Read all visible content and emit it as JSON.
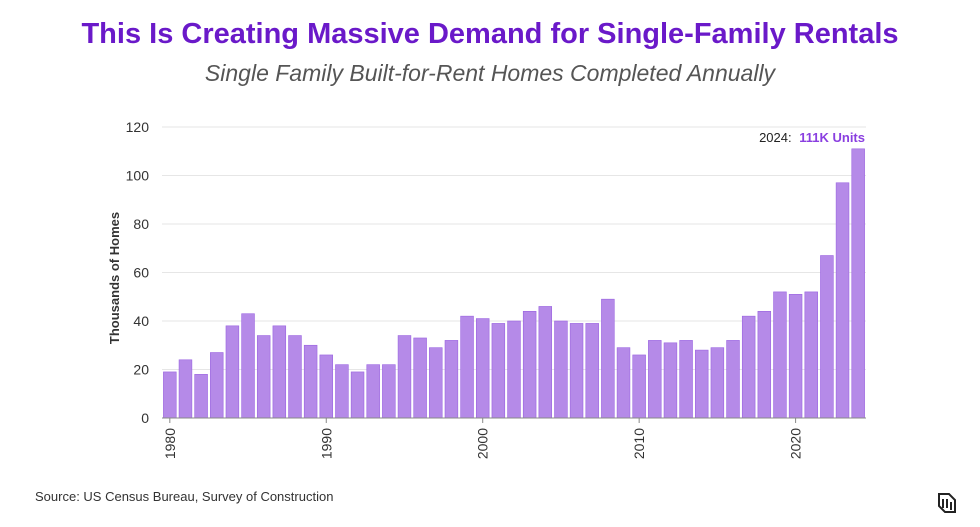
{
  "title": "This Is Creating Massive Demand for Single-Family Rentals",
  "subtitle": "Single Family Built-for-Rent Homes Completed Annually",
  "source": "Source: US Census Bureau, Survey of Construction",
  "colors": {
    "title": "#6a19c9",
    "bar": "#b58ae8",
    "bar_edge": "#9a63e0",
    "annotation_value": "#8a3fe0"
  },
  "chart_data": {
    "type": "bar",
    "ylabel": "Thousands of Homes",
    "xlabel": "",
    "ylim": [
      0,
      120
    ],
    "yticks": [
      0,
      20,
      40,
      60,
      80,
      100,
      120
    ],
    "xtick_labels": [
      "1980",
      "1990",
      "2000",
      "2010",
      "2020"
    ],
    "grid": true,
    "categories": [
      1980,
      1981,
      1982,
      1983,
      1984,
      1985,
      1986,
      1987,
      1988,
      1989,
      1990,
      1991,
      1992,
      1993,
      1994,
      1995,
      1996,
      1997,
      1998,
      1999,
      2000,
      2001,
      2002,
      2003,
      2004,
      2005,
      2006,
      2007,
      2008,
      2009,
      2010,
      2011,
      2012,
      2013,
      2014,
      2015,
      2016,
      2017,
      2018,
      2019,
      2020,
      2021,
      2022,
      2023,
      2024
    ],
    "values": [
      19,
      24,
      18,
      27,
      38,
      43,
      34,
      38,
      34,
      30,
      26,
      22,
      19,
      22,
      22,
      34,
      33,
      29,
      32,
      42,
      41,
      39,
      40,
      44,
      46,
      40,
      39,
      39,
      49,
      29,
      26,
      32,
      31,
      32,
      28,
      29,
      32,
      42,
      44,
      52,
      51,
      52,
      67,
      97,
      111
    ],
    "annotation": {
      "year_text": "2024:",
      "value_text": "111K Units"
    }
  }
}
